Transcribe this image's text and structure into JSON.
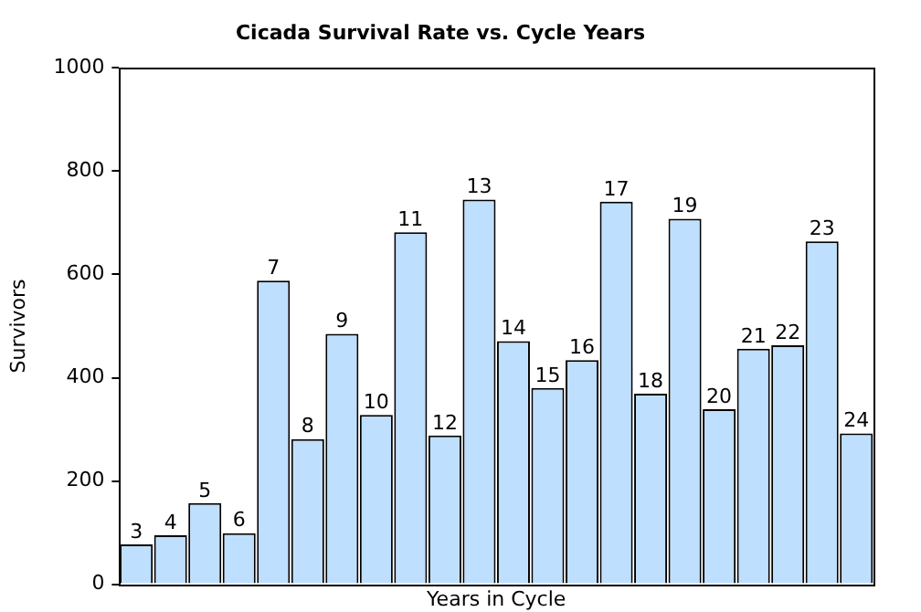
{
  "chart_data": {
    "type": "bar",
    "title": "Cicada Survival Rate vs. Cycle Years",
    "xlabel": "Years in Cycle",
    "ylabel": "Survivors",
    "categories": [
      "3",
      "4",
      "5",
      "6",
      "7",
      "8",
      "9",
      "10",
      "11",
      "12",
      "13",
      "14",
      "15",
      "16",
      "17",
      "18",
      "19",
      "20",
      "21",
      "22",
      "23",
      "24"
    ],
    "values": [
      77,
      95,
      157,
      99,
      588,
      281,
      485,
      328,
      682,
      288,
      745,
      471,
      380,
      434,
      741,
      369,
      708,
      339,
      456,
      463,
      664,
      292
    ],
    "color": "#bfdfff",
    "ylim": [
      0,
      1000
    ],
    "yticks": [
      0,
      200,
      400,
      600,
      800,
      1000
    ],
    "grid": false,
    "legend": false
  }
}
